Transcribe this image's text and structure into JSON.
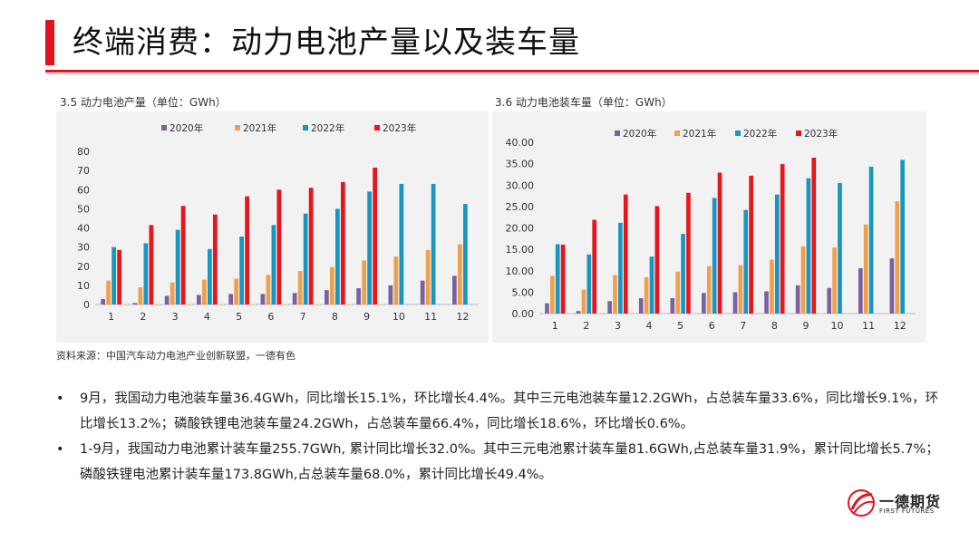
{
  "header": {
    "title": "终端消费：动力电池产量以及装车量"
  },
  "source": "资料来源：中国汽车动力电池产业创新联盟，一德有色",
  "bullets": [
    "9月，我国动力电池装车量36.4GWh，同比增长15.1%，环比增长4.4%。其中三元电池装车量12.2GWh，占总装车量33.6%，同比增长9.1%，环比增长13.2%；磷酸铁锂电池装车量24.2GWh，占总装车量66.4%，同比增长18.6%，环比增长0.6%。",
    "1-9月，我国动力电池累计装车量255.7GWh, 累计同比增长32.0%。其中三元电池累计装车量81.6GWh,占总装车量31.9%，累计同比增长5.7%；磷酸铁锂电池累计装车量173.8GWh,占总装车量68.0%，累计同比增长49.4%。"
  ],
  "bullet_marker": "•",
  "logo": {
    "name": "一德期货",
    "sub": "FIRST FUTURES"
  },
  "colors": {
    "accent": "#e0141e",
    "s2020": "#7a62a0",
    "s2021": "#f0a04b",
    "s2022": "#1896c0",
    "s2023": "#e8151b"
  },
  "chart_data": [
    {
      "type": "bar",
      "title": "3.5 动力电池产量（单位：GWh）",
      "categories": [
        "1",
        "2",
        "3",
        "4",
        "5",
        "6",
        "7",
        "8",
        "9",
        "10",
        "11",
        "12"
      ],
      "ylim": [
        0,
        80
      ],
      "yticks": [
        0,
        10,
        20,
        30,
        40,
        50,
        60,
        70,
        80
      ],
      "tick_decimals": 0,
      "legend_position": "top",
      "series": [
        {
          "name": "2020年",
          "values": [
            2.8,
            0.8,
            4.5,
            5.0,
            5.5,
            5.5,
            6.0,
            7.5,
            8.5,
            10.0,
            12.5,
            15.0
          ]
        },
        {
          "name": "2021年",
          "values": [
            12.5,
            9.0,
            11.5,
            13.0,
            13.5,
            15.5,
            17.5,
            19.5,
            23.0,
            25.0,
            28.5,
            31.5
          ]
        },
        {
          "name": "2022年",
          "values": [
            30.0,
            32.0,
            39.0,
            29.0,
            35.5,
            41.5,
            47.5,
            50.0,
            59.0,
            63.0,
            63.0,
            52.5
          ]
        },
        {
          "name": "2023年",
          "values": [
            28.5,
            41.5,
            51.5,
            47.0,
            56.5,
            60.0,
            61.0,
            64.0,
            71.5,
            null,
            null,
            null
          ]
        }
      ]
    },
    {
      "type": "bar",
      "title": "3.6 动力电池装车量（单位：GWh）",
      "categories": [
        "1",
        "2",
        "3",
        "4",
        "5",
        "6",
        "7",
        "8",
        "9",
        "10",
        "11",
        "12"
      ],
      "ylim": [
        0,
        40
      ],
      "yticks": [
        0,
        5,
        10,
        15,
        20,
        25,
        30,
        35,
        40
      ],
      "tick_decimals": 2,
      "legend_position": "top",
      "series": [
        {
          "name": "2020年",
          "values": [
            2.4,
            0.6,
            2.9,
            3.6,
            3.6,
            4.8,
            5.0,
            5.2,
            6.6,
            6.0,
            10.6,
            12.9
          ]
        },
        {
          "name": "2021年",
          "values": [
            8.8,
            5.6,
            9.0,
            8.5,
            9.8,
            11.1,
            11.3,
            12.6,
            15.7,
            15.4,
            20.8,
            26.2
          ]
        },
        {
          "name": "2022年",
          "values": [
            16.2,
            13.8,
            21.2,
            13.3,
            18.6,
            27.0,
            24.2,
            27.8,
            31.6,
            30.5,
            34.3,
            35.9
          ]
        },
        {
          "name": "2023年",
          "values": [
            16.1,
            21.9,
            27.8,
            25.1,
            28.2,
            32.9,
            32.2,
            34.9,
            36.4,
            null,
            null,
            null
          ]
        }
      ]
    }
  ]
}
